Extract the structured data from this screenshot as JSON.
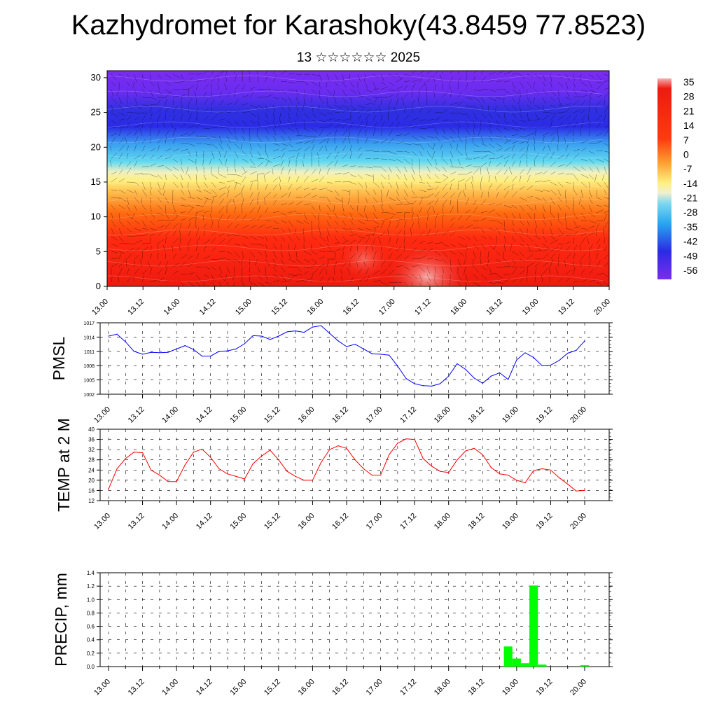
{
  "title": "Kazhydromet for Karashoky(43.8459 77.8523)",
  "subtitle": "13 ☆☆☆☆☆☆ 2025",
  "time_labels": [
    "13.00",
    "13.12",
    "14.00",
    "14.12",
    "15.00",
    "15.12",
    "16.00",
    "16.12",
    "17.00",
    "17.12",
    "18.00",
    "18.12",
    "19.00",
    "19.12",
    "20.00"
  ],
  "chart_data": [
    {
      "type": "heatmap",
      "name": "cross-section",
      "y_ticks": [
        0,
        5,
        10,
        15,
        20,
        25,
        30
      ],
      "ylim": [
        0,
        31
      ],
      "colorbar_labels": [
        "35",
        "28",
        "21",
        "14",
        "7",
        "0",
        "-7",
        "-14",
        "-21",
        "-28",
        "-35",
        "-42",
        "-49",
        "-56"
      ],
      "colorbar_range": [
        -60,
        38
      ],
      "colors": {
        "cold": "#7a2cf0",
        "blue": "#2b2be6",
        "cyan": "#28c8f0",
        "yellow": "#fff080",
        "orange": "#ff8a00",
        "red": "#ee1a10",
        "warm": "#f7b0b0"
      }
    },
    {
      "type": "line",
      "ylabel": "PMSL",
      "ylim": [
        1002,
        1017
      ],
      "y_ticks": [
        1002,
        1005,
        1008,
        1011,
        1014,
        1017
      ],
      "color": "#0000ff",
      "x_hours": [
        0,
        3,
        6,
        9,
        12,
        15,
        18,
        21,
        24,
        27,
        30,
        33,
        36,
        39,
        42,
        45,
        48,
        51,
        54,
        57,
        60,
        63,
        66,
        69,
        72,
        75,
        78,
        81,
        84,
        87,
        90,
        93,
        96,
        99,
        102,
        105,
        108,
        111,
        114,
        117,
        120,
        123,
        126,
        129,
        132,
        135,
        138,
        141,
        144,
        147,
        150,
        153,
        156,
        159,
        162,
        165,
        168
      ],
      "values": [
        1014.2,
        1014.6,
        1013.0,
        1011.0,
        1010.4,
        1010.8,
        1010.7,
        1010.8,
        1011.5,
        1012.2,
        1011.4,
        1010.0,
        1010.0,
        1011.0,
        1011.1,
        1011.5,
        1012.6,
        1014.3,
        1014.2,
        1013.5,
        1014.2,
        1015.1,
        1015.3,
        1015.0,
        1016.1,
        1016.4,
        1014.8,
        1013.2,
        1012.0,
        1012.5,
        1011.5,
        1010.5,
        1010.4,
        1010.2,
        1007.9,
        1005.3,
        1004.2,
        1003.8,
        1003.7,
        1004.2,
        1005.8,
        1008.4,
        1007.2,
        1005.4,
        1004.3,
        1005.8,
        1006.5,
        1005.1,
        1009.2,
        1010.7,
        1009.7,
        1008.0,
        1008.1,
        1009.1,
        1010.6,
        1011.2,
        1013.2
      ]
    },
    {
      "type": "line",
      "ylabel": "TEMP at 2 M",
      "ylim": [
        12,
        40
      ],
      "y_ticks": [
        12,
        16,
        20,
        24,
        28,
        32,
        36,
        40
      ],
      "color": "#ff0000",
      "x_hours": [
        0,
        3,
        6,
        9,
        12,
        15,
        18,
        21,
        24,
        27,
        30,
        33,
        36,
        39,
        42,
        45,
        48,
        51,
        54,
        57,
        60,
        63,
        66,
        69,
        72,
        75,
        78,
        81,
        84,
        87,
        90,
        93,
        96,
        99,
        102,
        105,
        108,
        111,
        114,
        117,
        120,
        123,
        126,
        129,
        132,
        135,
        138,
        141,
        144,
        147,
        150,
        153,
        156,
        159,
        162,
        165,
        168
      ],
      "values": [
        16.5,
        24.5,
        28.5,
        31.0,
        30.8,
        24.0,
        22.0,
        19.5,
        19.5,
        26.0,
        31.0,
        32.2,
        29.0,
        24.5,
        22.5,
        21.5,
        20.5,
        26.5,
        29.5,
        31.8,
        28.0,
        23.5,
        21.5,
        20.0,
        20.0,
        27.0,
        32.0,
        33.5,
        32.5,
        28.0,
        24.5,
        22.0,
        22.0,
        30.0,
        34.5,
        36.2,
        36.0,
        28.5,
        25.5,
        23.5,
        23.0,
        28.0,
        31.5,
        32.5,
        30.0,
        25.0,
        22.5,
        22.0,
        20.0,
        19.0,
        23.8,
        24.5,
        24.0,
        21.0,
        18.5,
        15.8,
        16.0
      ]
    },
    {
      "type": "bar",
      "ylabel": "PRECIP, mm",
      "ylim": [
        0,
        1.4
      ],
      "y_ticks": [
        "0.0",
        "0.2",
        "0.4",
        "0.6",
        "0.8",
        "1.0",
        "1.2",
        "1.4"
      ],
      "color": "#00ff00",
      "x_hours": [
        141,
        144,
        147,
        150,
        153,
        168
      ],
      "values": [
        0.3,
        0.12,
        0.05,
        1.21,
        0.03,
        0.02
      ]
    }
  ]
}
